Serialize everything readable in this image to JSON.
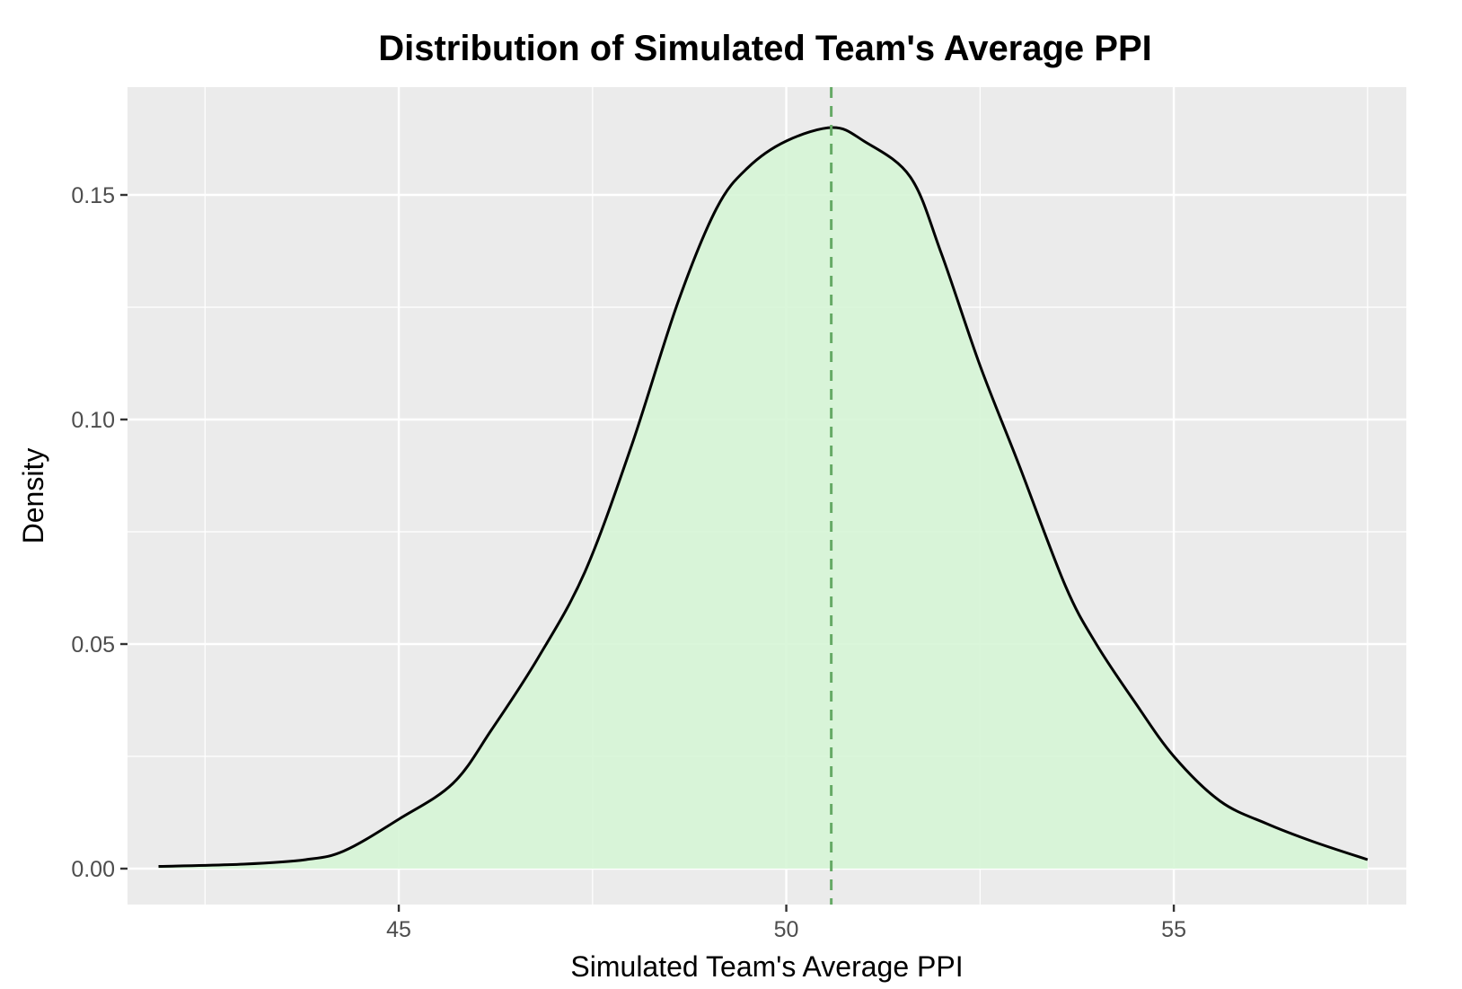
{
  "chart_data": {
    "type": "area",
    "title": "Distribution of Simulated Team's Average PPI",
    "xlabel": "Simulated Team's Average PPI",
    "ylabel": "Density",
    "xlim": [
      41.5,
      58.0
    ],
    "ylim": [
      -0.008,
      0.174
    ],
    "x_ticks": [
      45,
      50,
      55
    ],
    "x_tick_labels": [
      "45",
      "50",
      "55"
    ],
    "x_minor_ticks": [
      42.5,
      47.5,
      52.5,
      57.5
    ],
    "y_ticks": [
      0.0,
      0.05,
      0.1,
      0.15
    ],
    "y_tick_labels": [
      "0.00",
      "0.05",
      "0.10",
      "0.15"
    ],
    "y_minor_ticks": [
      0.025,
      0.075,
      0.125
    ],
    "grid": true,
    "vline_x": 50.58,
    "colors": {
      "fill": "#d6f5d6",
      "line": "#000000",
      "vline": "#66aa66",
      "panel": "#ebebeb",
      "grid": "#ffffff"
    },
    "x": [
      41.9,
      43.0,
      43.8,
      44.3,
      45.0,
      45.7,
      46.2,
      46.8,
      47.4,
      48.0,
      48.6,
      49.1,
      49.5,
      50.0,
      50.6,
      51.0,
      51.6,
      52.0,
      52.5,
      53.0,
      53.6,
      54.0,
      54.5,
      55.0,
      55.6,
      56.2,
      56.8,
      57.5
    ],
    "values": [
      0.0005,
      0.001,
      0.002,
      0.004,
      0.011,
      0.019,
      0.031,
      0.047,
      0.066,
      0.094,
      0.126,
      0.147,
      0.156,
      0.162,
      0.165,
      0.162,
      0.154,
      0.137,
      0.112,
      0.09,
      0.063,
      0.05,
      0.037,
      0.025,
      0.015,
      0.01,
      0.006,
      0.002
    ]
  }
}
